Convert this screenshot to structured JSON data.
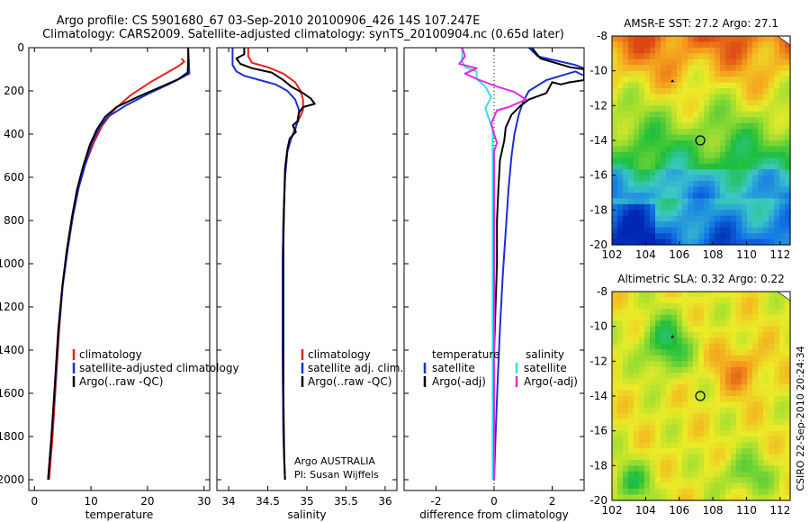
{
  "figure": {
    "title_line1": "Argo profile: CS 5901680_67 03-Sep-2010 20100906_426 14S 107.247E",
    "title_line2": "Climatology: CARS2009. Satellite-adjusted climatology: synTS_20100904.nc (0.65d later)",
    "credit": "CSIRO 22-Sep-2010 20:24:34"
  },
  "colors": {
    "climatology": "#e8211c",
    "satellite": "#1a2fd6",
    "argo": "#000000",
    "satellite_salinity": "#2fe0e8",
    "argo_adj_salinity": "#e627e6"
  },
  "chart_data": [
    {
      "type": "line",
      "xlabel": "temperature",
      "ylabel": "",
      "xlim": [
        -1,
        31
      ],
      "ylim": [
        2050,
        0
      ],
      "xticks": [
        0,
        10,
        20,
        30
      ],
      "yticks": [
        0,
        200,
        400,
        600,
        800,
        1000,
        1200,
        1400,
        1600,
        1800,
        2000
      ],
      "legend": [
        "climatology",
        "satellite-adjusted climatology",
        "Argo(..raw -QC)"
      ],
      "series": [
        {
          "name": "climatology",
          "color": "climatology",
          "points": [
            [
              26.0,
              50
            ],
            [
              26.5,
              65
            ],
            [
              25.5,
              85
            ],
            [
              23.5,
              115
            ],
            [
              20.5,
              160
            ],
            [
              17.0,
              220
            ],
            [
              14.0,
              290
            ],
            [
              12.0,
              360
            ],
            [
              10.5,
              440
            ],
            [
              9.0,
              540
            ],
            [
              7.8,
              650
            ],
            [
              6.8,
              780
            ],
            [
              5.9,
              930
            ],
            [
              5.0,
              1100
            ],
            [
              4.4,
              1300
            ],
            [
              3.8,
              1550
            ],
            [
              3.2,
              1800
            ],
            [
              2.6,
              2000
            ]
          ]
        },
        {
          "name": "satellite-adjusted climatology",
          "color": "satellite",
          "points": [
            [
              27.2,
              0
            ],
            [
              27.3,
              60
            ],
            [
              27.4,
              120
            ],
            [
              24.5,
              160
            ],
            [
              20.0,
              215
            ],
            [
              16.0,
              270
            ],
            [
              13.0,
              320
            ],
            [
              11.5,
              370
            ],
            [
              10.2,
              440
            ],
            [
              9.0,
              540
            ],
            [
              7.8,
              650
            ],
            [
              6.8,
              780
            ],
            [
              5.9,
              930
            ],
            [
              5.0,
              1100
            ],
            [
              4.3,
              1300
            ],
            [
              3.7,
              1550
            ],
            [
              3.0,
              1800
            ],
            [
              2.4,
              2000
            ]
          ]
        },
        {
          "name": "Argo(..raw -QC)",
          "color": "argo",
          "points": [
            [
              27.2,
              0
            ],
            [
              27.2,
              60
            ],
            [
              27.1,
              115
            ],
            [
              25.5,
              145
            ],
            [
              22.5,
              180
            ],
            [
              18.5,
              225
            ],
            [
              14.5,
              275
            ],
            [
              12.5,
              320
            ],
            [
              11.0,
              380
            ],
            [
              9.8,
              450
            ],
            [
              8.6,
              550
            ],
            [
              7.5,
              660
            ],
            [
              6.6,
              790
            ],
            [
              5.7,
              940
            ],
            [
              4.9,
              1110
            ],
            [
              4.2,
              1310
            ],
            [
              3.6,
              1560
            ],
            [
              3.0,
              1810
            ],
            [
              2.4,
              2000
            ]
          ]
        }
      ]
    },
    {
      "type": "line",
      "xlabel": "salinity",
      "ylabel": "",
      "xlim": [
        33.85,
        36.15
      ],
      "ylim": [
        2050,
        0
      ],
      "xticks": [
        34,
        34.5,
        35,
        35.5,
        36
      ],
      "yticks": [
        0,
        200,
        400,
        600,
        800,
        1000,
        1200,
        1400,
        1600,
        1800,
        2000
      ],
      "legend": [
        "climatology",
        "satellite adj. clim.",
        "Argo(..raw -QC)"
      ],
      "series": [
        {
          "name": "climatology",
          "color": "climatology",
          "points": [
            [
              34.25,
              0
            ],
            [
              34.25,
              40
            ],
            [
              34.3,
              70
            ],
            [
              34.5,
              90
            ],
            [
              34.7,
              120
            ],
            [
              34.85,
              160
            ],
            [
              34.92,
              200
            ],
            [
              34.95,
              240
            ],
            [
              34.95,
              290
            ],
            [
              34.9,
              330
            ],
            [
              34.85,
              370
            ],
            [
              34.8,
              420
            ],
            [
              34.75,
              480
            ],
            [
              34.72,
              600
            ],
            [
              34.7,
              800
            ],
            [
              34.69,
              1000
            ],
            [
              34.69,
              1400
            ],
            [
              34.7,
              1800
            ],
            [
              34.72,
              2000
            ]
          ]
        },
        {
          "name": "satellite adj. clim.",
          "color": "satellite",
          "points": [
            [
              34.05,
              0
            ],
            [
              34.05,
              80
            ],
            [
              34.1,
              110
            ],
            [
              34.2,
              130
            ],
            [
              34.4,
              150
            ],
            [
              34.6,
              170
            ],
            [
              34.75,
              200
            ],
            [
              34.85,
              240
            ],
            [
              34.9,
              290
            ],
            [
              34.88,
              340
            ],
            [
              34.85,
              380
            ],
            [
              34.8,
              420
            ],
            [
              34.75,
              480
            ],
            [
              34.72,
              600
            ],
            [
              34.7,
              800
            ],
            [
              34.69,
              1000
            ],
            [
              34.69,
              1400
            ],
            [
              34.7,
              1800
            ],
            [
              34.72,
              2000
            ]
          ]
        },
        {
          "name": "Argo(..raw -QC)",
          "color": "argo",
          "points": [
            [
              34.2,
              0
            ],
            [
              34.2,
              30
            ],
            [
              34.1,
              50
            ],
            [
              34.15,
              75
            ],
            [
              34.3,
              95
            ],
            [
              34.55,
              115
            ],
            [
              34.7,
              150
            ],
            [
              34.8,
              180
            ],
            [
              34.95,
              210
            ],
            [
              35.05,
              235
            ],
            [
              35.1,
              260
            ],
            [
              34.95,
              275
            ],
            [
              34.9,
              300
            ],
            [
              34.88,
              340
            ],
            [
              34.82,
              360
            ],
            [
              34.86,
              390
            ],
            [
              34.78,
              420
            ],
            [
              34.75,
              470
            ],
            [
              34.72,
              560
            ],
            [
              34.71,
              700
            ],
            [
              34.7,
              900
            ],
            [
              34.7,
              1200
            ],
            [
              34.7,
              1600
            ],
            [
              34.71,
              1900
            ],
            [
              34.72,
              2000
            ]
          ]
        }
      ],
      "annotation_lines": [
        "Argo AUSTRALIA",
        "PI: Susan Wijffels"
      ]
    },
    {
      "type": "line",
      "xlabel": "difference from climatology",
      "ylabel": "",
      "xlim": [
        -3.1,
        3.1
      ],
      "ylim": [
        2050,
        0
      ],
      "xticks": [
        -2,
        0,
        2
      ],
      "yticks": [
        0,
        200,
        400,
        600,
        800,
        1000,
        1200,
        1400,
        1600,
        1800,
        2000
      ],
      "legend_headers": [
        "temperature",
        "salinity"
      ],
      "legend": [
        "satellite",
        "Argo(-adj)",
        "satellite",
        "Argo(-adj)"
      ],
      "series": [
        {
          "name": "temperature satellite",
          "color": "satellite",
          "points": [
            [
              1.2,
              0
            ],
            [
              1.5,
              40
            ],
            [
              2.8,
              80
            ],
            [
              3.1,
              95
            ],
            [
              3.1,
              130
            ],
            [
              2.8,
              110
            ],
            [
              1.8,
              150
            ],
            [
              1.2,
              200
            ],
            [
              1.0,
              250
            ],
            [
              0.85,
              310
            ],
            [
              0.7,
              400
            ],
            [
              0.6,
              500
            ],
            [
              0.5,
              650
            ],
            [
              0.4,
              850
            ],
            [
              0.3,
              1050
            ],
            [
              0.2,
              1300
            ],
            [
              0.12,
              1550
            ],
            [
              0.05,
              1800
            ],
            [
              0.0,
              2000
            ]
          ]
        },
        {
          "name": "temperature Argo(-adj)",
          "color": "argo",
          "points": [
            [
              1.3,
              0
            ],
            [
              1.6,
              50
            ],
            [
              2.6,
              90
            ],
            [
              3.1,
              100
            ],
            [
              3.1,
              150
            ],
            [
              2.6,
              160
            ],
            [
              2.3,
              170
            ],
            [
              2.0,
              160
            ],
            [
              1.8,
              210
            ],
            [
              1.2,
              240
            ],
            [
              0.9,
              270
            ],
            [
              0.6,
              310
            ],
            [
              0.4,
              370
            ],
            [
              0.35,
              430
            ],
            [
              0.2,
              520
            ],
            [
              0.15,
              650
            ],
            [
              0.1,
              800
            ],
            [
              0.1,
              1000
            ],
            [
              0.05,
              1200
            ],
            [
              0.0,
              1400
            ],
            [
              -0.05,
              1600
            ],
            [
              0.0,
              1750
            ],
            [
              0.0,
              2000
            ]
          ]
        },
        {
          "name": "salinity satellite",
          "color": "satellite_salinity",
          "points": [
            [
              -1.1,
              0
            ],
            [
              -1.1,
              60
            ],
            [
              -1.0,
              90
            ],
            [
              -0.6,
              110
            ],
            [
              -0.6,
              145
            ],
            [
              -0.3,
              180
            ],
            [
              -0.1,
              230
            ],
            [
              -0.3,
              280
            ],
            [
              -0.2,
              320
            ],
            [
              -0.05,
              380
            ],
            [
              -0.05,
              600
            ],
            [
              -0.05,
              1000
            ],
            [
              -0.05,
              1500
            ],
            [
              -0.05,
              2000
            ]
          ]
        },
        {
          "name": "salinity Argo(-adj)",
          "color": "argo_adj_salinity",
          "points": [
            [
              -1.1,
              0
            ],
            [
              -1.0,
              40
            ],
            [
              -1.2,
              75
            ],
            [
              -0.6,
              95
            ],
            [
              -1.0,
              120
            ],
            [
              -0.5,
              150
            ],
            [
              0.1,
              180
            ],
            [
              0.7,
              205
            ],
            [
              1.1,
              240
            ],
            [
              0.5,
              275
            ],
            [
              0.1,
              290
            ],
            [
              0.0,
              320
            ],
            [
              -0.1,
              350
            ],
            [
              0.0,
              400
            ],
            [
              0.1,
              440
            ],
            [
              0.0,
              480
            ],
            [
              0.0,
              600
            ],
            [
              0.0,
              1000
            ],
            [
              0.0,
              1500
            ],
            [
              0.0,
              2000
            ]
          ]
        }
      ]
    },
    {
      "type": "heatmap",
      "title": "AMSR-E SST: 27.2 Argo: 27.1",
      "xlim": [
        102,
        112.6
      ],
      "ylim": [
        -20,
        -8
      ],
      "xticks": [
        102,
        104,
        106,
        108,
        110,
        112
      ],
      "yticks": [
        -8,
        -10,
        -12,
        -14,
        -16,
        -18,
        -20
      ],
      "argo_position": [
        107.25,
        -14.0
      ],
      "marker": [
        105.6,
        -10.6
      ]
    },
    {
      "type": "heatmap",
      "title": "Altimetric SLA: 0.32 Argo: 0.22",
      "xlim": [
        102,
        112.6
      ],
      "ylim": [
        -20,
        -8
      ],
      "xticks": [
        102,
        104,
        106,
        108,
        110,
        112
      ],
      "yticks": [
        -8,
        -10,
        -12,
        -14,
        -16,
        -18,
        -20
      ],
      "argo_position": [
        107.25,
        -14.0
      ],
      "marker": [
        105.6,
        -10.6
      ]
    }
  ]
}
